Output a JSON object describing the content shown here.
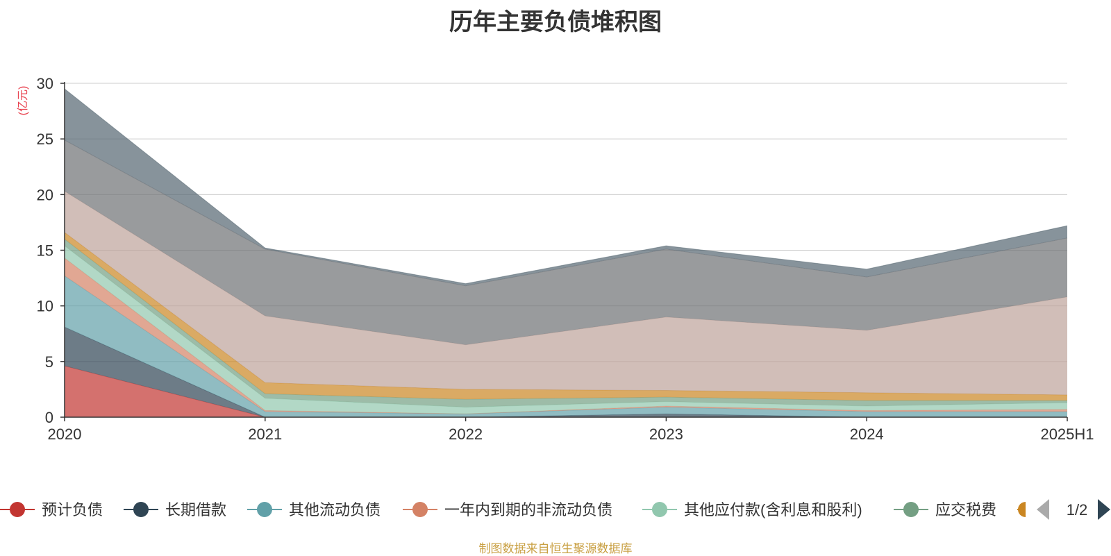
{
  "chart_data": {
    "type": "area",
    "stacked": true,
    "title": "历年主要负债堆积图",
    "ylabel": "(亿元)",
    "xlabel": "",
    "categories": [
      "2020",
      "2021",
      "2022",
      "2023",
      "2024",
      "2025H1"
    ],
    "ylim": [
      0,
      30
    ],
    "yticks": [
      0,
      5,
      10,
      15,
      20,
      25,
      30
    ],
    "grid": true,
    "series": [
      {
        "name": "预计负债",
        "color": "#c23531",
        "values": [
          4.6,
          0.0,
          0.0,
          0.0,
          0.0,
          0.0
        ]
      },
      {
        "name": "长期借款",
        "color": "#2f4554",
        "values": [
          3.5,
          0.0,
          0.0,
          0.3,
          0.0,
          0.0
        ]
      },
      {
        "name": "其他流动负债",
        "color": "#61a0a8",
        "values": [
          4.6,
          0.5,
          0.3,
          0.6,
          0.5,
          0.5
        ]
      },
      {
        "name": "一年内到期的非流动负债",
        "color": "#d48265",
        "values": [
          1.6,
          0.1,
          0.0,
          0.1,
          0.1,
          0.2
        ]
      },
      {
        "name": "其他应付款(含利息和股利)",
        "color": "#91c7ae",
        "values": [
          1.1,
          1.1,
          0.6,
          0.4,
          0.4,
          0.6
        ]
      },
      {
        "name": "应交税费",
        "color": "#749f83",
        "values": [
          0.6,
          0.4,
          0.7,
          0.4,
          0.5,
          0.2
        ]
      },
      {
        "name": "",
        "color": "#ca8622",
        "values": [
          0.6,
          1.0,
          0.9,
          0.6,
          0.7,
          0.5
        ]
      },
      {
        "name": "",
        "color": "#bda29a",
        "values": [
          3.7,
          6.0,
          4.0,
          6.6,
          5.6,
          8.8
        ]
      },
      {
        "name": "",
        "color": "#6e7074",
        "values": [
          4.6,
          6.0,
          5.3,
          6.1,
          4.8,
          5.3
        ]
      },
      {
        "name": "",
        "color": "#546570",
        "values": [
          4.6,
          0.1,
          0.2,
          0.3,
          0.7,
          1.1
        ]
      }
    ],
    "legend": {
      "placement": "bottom",
      "page": "1/2",
      "visible_items": [
        "预计负债",
        "长期借款",
        "其他流动负债",
        "一年内到期的非流动负债",
        "其他应付款(含利息和股利)",
        "应交税费"
      ]
    }
  },
  "source_note": "制图数据来自恒生聚源数据库"
}
